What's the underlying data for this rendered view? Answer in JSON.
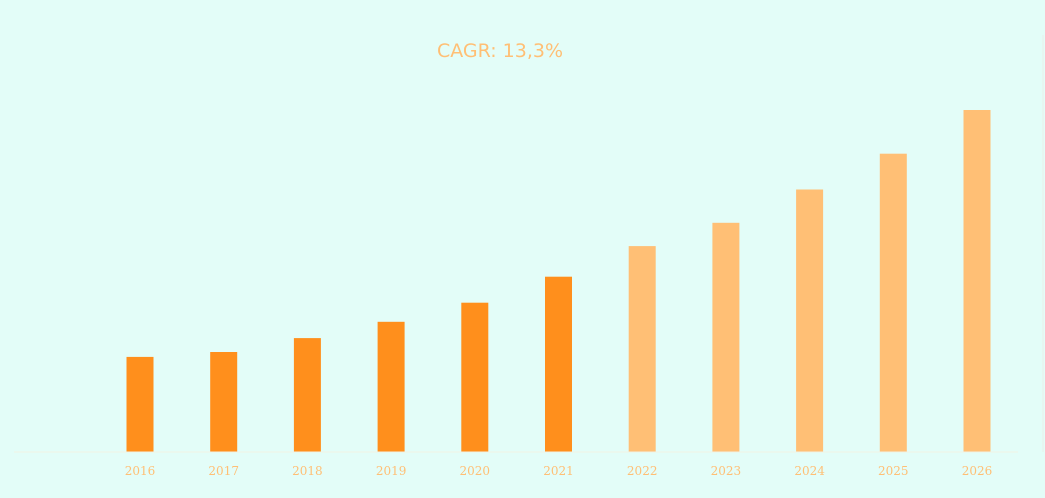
{
  "colors": {
    "background": "#e3fdf8",
    "historical": "#ff8f1c",
    "forecast": "#ffbf75",
    "tick_label": "#ffbf75",
    "title": "#ffbf75"
  },
  "annotation": "CAGR: 13,3%",
  "chart_data": {
    "type": "bar",
    "title": "",
    "xlabel": "",
    "ylabel": "",
    "grid": false,
    "y_axis_labels": false,
    "categories": [
      "2016",
      "2017",
      "2018",
      "2019",
      "2020",
      "2021",
      "2022",
      "2023",
      "2024",
      "2025",
      "2026"
    ],
    "values": [
      27.4,
      28.8,
      32.8,
      37.5,
      43,
      50.5,
      59.3,
      66,
      75.6,
      85.9,
      98.5
    ],
    "forecast_from": "2022",
    "ylim": [
      0,
      100
    ]
  }
}
